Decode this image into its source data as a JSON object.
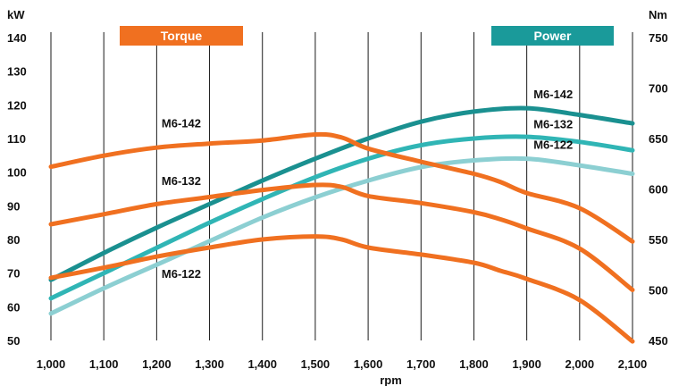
{
  "chart_data": {
    "type": "line",
    "xlabel": "rpm",
    "y_left_unit": "kW",
    "y_right_unit": "Nm",
    "x_ticks": [
      1000,
      1100,
      1200,
      1300,
      1400,
      1500,
      1600,
      1700,
      1800,
      1900,
      2000,
      2100
    ],
    "x_tick_labels": [
      "1,000",
      "1,100",
      "1,200",
      "1,300",
      "1,400",
      "1,500",
      "1,600",
      "1,700",
      "1,800",
      "1,900",
      "2,000",
      "2,100"
    ],
    "xlim": [
      1000,
      2100
    ],
    "y_left_ticks": [
      50,
      60,
      70,
      80,
      90,
      100,
      110,
      120,
      130,
      140
    ],
    "y_left_tick_labels": [
      "50",
      "60",
      "70",
      "80",
      "90",
      "100",
      "110",
      "120",
      "130",
      "140"
    ],
    "y_left_lim": [
      50,
      140
    ],
    "y_right_ticks": [
      450,
      500,
      550,
      600,
      650,
      700,
      750
    ],
    "y_right_tick_labels": [
      "450",
      "500",
      "550",
      "600",
      "650",
      "700",
      "750"
    ],
    "y_right_lim": [
      450,
      750
    ],
    "grid": "vertical",
    "legend": [
      {
        "label": "Torque",
        "color": "#f07020",
        "placement": "top-left"
      },
      {
        "label": "Power",
        "color": "#1a9a9a",
        "placement": "top-right"
      }
    ],
    "series": [
      {
        "name": "M6-142",
        "group": "Power",
        "axis": "left",
        "color": "#1a9090",
        "x": [
          1000,
          1100,
          1200,
          1300,
          1400,
          1500,
          1600,
          1700,
          1800,
          1900,
          2000,
          2100
        ],
        "y": [
          68,
          76,
          83.5,
          90.5,
          97.5,
          104,
          110,
          115,
          118,
          119,
          117,
          114.5
        ]
      },
      {
        "name": "M6-132",
        "group": "Power",
        "axis": "left",
        "color": "#30b5b5",
        "x": [
          1000,
          1100,
          1200,
          1300,
          1400,
          1500,
          1600,
          1700,
          1800,
          1900,
          2000,
          2100
        ],
        "y": [
          62.5,
          70,
          77.5,
          85,
          92,
          98.5,
          104,
          108,
          110,
          110.5,
          109,
          106.5
        ]
      },
      {
        "name": "M6-122",
        "group": "Power",
        "axis": "left",
        "color": "#8ccfd2",
        "x": [
          1000,
          1100,
          1200,
          1300,
          1400,
          1500,
          1600,
          1700,
          1800,
          1900,
          2000,
          2100
        ],
        "y": [
          58,
          65.5,
          72.5,
          79.5,
          86.5,
          92.5,
          97.5,
          101.5,
          103.5,
          104,
          102,
          99.5
        ]
      },
      {
        "name": "M6-142",
        "group": "Torque",
        "axis": "right",
        "color": "#f07020",
        "x": [
          1000,
          1100,
          1200,
          1300,
          1400,
          1500,
          1550,
          1600,
          1700,
          1800,
          1850,
          1900,
          2000,
          2100
        ],
        "y": [
          622,
          633,
          641,
          645,
          648,
          654,
          651,
          640,
          627,
          615,
          607,
          596,
          581,
          548
        ]
      },
      {
        "name": "M6-132",
        "group": "Torque",
        "axis": "right",
        "color": "#f07020",
        "x": [
          1000,
          1100,
          1200,
          1300,
          1400,
          1500,
          1550,
          1600,
          1700,
          1800,
          1850,
          1900,
          2000,
          2100
        ],
        "y": [
          565,
          575,
          585,
          592,
          599,
          604,
          602,
          593,
          586,
          577,
          570,
          561,
          541,
          500
        ]
      },
      {
        "name": "M6-122",
        "group": "Torque",
        "axis": "right",
        "color": "#f07020",
        "x": [
          1000,
          1100,
          1200,
          1300,
          1400,
          1500,
          1550,
          1600,
          1700,
          1800,
          1850,
          1900,
          2000,
          2100
        ],
        "y": [
          512,
          522,
          533,
          542,
          550,
          553,
          550,
          542,
          535,
          527,
          519,
          511,
          490,
          449
        ]
      }
    ],
    "annotations": [
      {
        "text": "M6-142",
        "near": "Torque",
        "x": 1250,
        "y_right": 661
      },
      {
        "text": "M6-132",
        "near": "Torque",
        "x": 1250,
        "y_right": 604
      },
      {
        "text": "M6-122",
        "near": "Torque",
        "x": 1250,
        "y_right": 512
      },
      {
        "text": "M6-142",
        "near": "Power",
        "x": 1950,
        "y_left": 122
      },
      {
        "text": "M6-132",
        "near": "Power",
        "x": 1950,
        "y_left": 113
      },
      {
        "text": "M6-122",
        "near": "Power",
        "x": 1950,
        "y_left": 107
      }
    ]
  }
}
